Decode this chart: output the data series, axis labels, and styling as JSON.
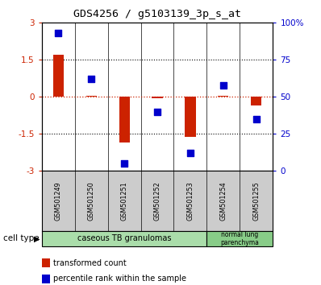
{
  "title": "GDS4256 / g5103139_3p_s_at",
  "samples": [
    "GSM501249",
    "GSM501250",
    "GSM501251",
    "GSM501252",
    "GSM501253",
    "GSM501254",
    "GSM501255"
  ],
  "transformed_count": [
    1.72,
    0.06,
    -1.85,
    -0.06,
    -1.62,
    0.06,
    -0.35
  ],
  "percentile_rank": [
    93,
    62,
    5,
    40,
    12,
    58,
    35
  ],
  "ylim_left": [
    -3,
    3
  ],
  "ylim_right": [
    0,
    100
  ],
  "yticks_left": [
    -3,
    -1.5,
    0,
    1.5,
    3
  ],
  "yticks_right": [
    0,
    25,
    50,
    75,
    100
  ],
  "ytick_labels_left": [
    "-3",
    "-1.5",
    "0",
    "1.5",
    "3"
  ],
  "ytick_labels_right": [
    "0",
    "25",
    "50",
    "75",
    "100%"
  ],
  "red_color": "#cc2200",
  "blue_color": "#0000cc",
  "bar_width": 0.32,
  "hline_values": [
    -1.5,
    1.5
  ],
  "group1_label": "caseous TB granulomas",
  "group1_count": 5,
  "group1_color": "#aaddaa",
  "group2_label": "normal lung\nparenchyma",
  "group2_count": 2,
  "group2_color": "#88cc88",
  "legend_items": [
    {
      "label": "transformed count",
      "color": "#cc2200"
    },
    {
      "label": "percentile rank within the sample",
      "color": "#0000cc"
    }
  ],
  "cell_type_label": "cell type",
  "bg_color": "#ffffff",
  "sample_box_color": "#cccccc"
}
